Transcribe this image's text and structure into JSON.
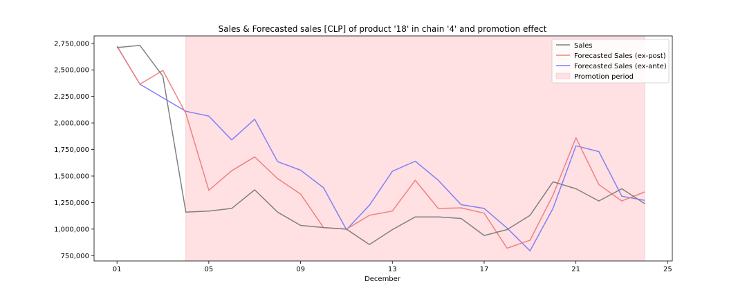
{
  "chart_data": {
    "type": "line",
    "title": "Sales & Forecasted sales [CLP] of product '18' in chain '4' and promotion effect",
    "xlabel": "December",
    "ylabel": "",
    "x": [
      1,
      2,
      3,
      4,
      5,
      6,
      7,
      8,
      9,
      10,
      11,
      12,
      13,
      14,
      15,
      16,
      17,
      18,
      19,
      20,
      21,
      22,
      23,
      24
    ],
    "xlim": [
      0.0,
      25.2
    ],
    "ylim": [
      700000,
      2820000
    ],
    "x_ticks": [
      {
        "value": 1,
        "label": "01"
      },
      {
        "value": 5,
        "label": "05"
      },
      {
        "value": 9,
        "label": "09"
      },
      {
        "value": 13,
        "label": "13"
      },
      {
        "value": 17,
        "label": "17"
      },
      {
        "value": 21,
        "label": "21"
      },
      {
        "value": 25,
        "label": "25"
      }
    ],
    "y_ticks": [
      {
        "value": 750000,
        "label": "750,000"
      },
      {
        "value": 1000000,
        "label": "1,000,000"
      },
      {
        "value": 1250000,
        "label": "1,250,000"
      },
      {
        "value": 1500000,
        "label": "1,500,000"
      },
      {
        "value": 1750000,
        "label": "1,750,000"
      },
      {
        "value": 2000000,
        "label": "2,000,000"
      },
      {
        "value": 2250000,
        "label": "2,250,000"
      },
      {
        "value": 2500000,
        "label": "2,500,000"
      },
      {
        "value": 2750000,
        "label": "2,750,000"
      }
    ],
    "series": [
      {
        "name": "Sales",
        "color": "#808080",
        "values": [
          2710000,
          2730000,
          2440000,
          1160000,
          1170000,
          1195000,
          1370000,
          1160000,
          1035000,
          1015000,
          1000000,
          855000,
          995000,
          1115000,
          1115000,
          1100000,
          940000,
          995000,
          1130000,
          1445000,
          1380000,
          1265000,
          1380000,
          1240000
        ]
      },
      {
        "name": "Forecasted Sales (ex-post)",
        "color": "#f08080",
        "values": [
          2720000,
          2365000,
          2495000,
          2090000,
          1365000,
          1550000,
          1680000,
          1475000,
          1330000,
          1015000,
          1000000,
          1130000,
          1170000,
          1460000,
          1195000,
          1200000,
          1150000,
          820000,
          895000,
          1320000,
          1860000,
          1420000,
          1265000,
          1350000
        ]
      },
      {
        "name": "Forecasted Sales (ex-ante)",
        "color": "#8080f8",
        "values": [
          2725000,
          2365000,
          null,
          2110000,
          2065000,
          1840000,
          2035000,
          1635000,
          1555000,
          1390000,
          995000,
          1225000,
          1545000,
          1640000,
          1460000,
          1230000,
          1195000,
          1010000,
          795000,
          1195000,
          1785000,
          1730000,
          1310000,
          1270000
        ]
      }
    ],
    "promotion": {
      "name": "Promotion period",
      "start": 4,
      "end": 24,
      "color": "#ffe0e3"
    },
    "legend_position": "top-right",
    "grid": false
  }
}
